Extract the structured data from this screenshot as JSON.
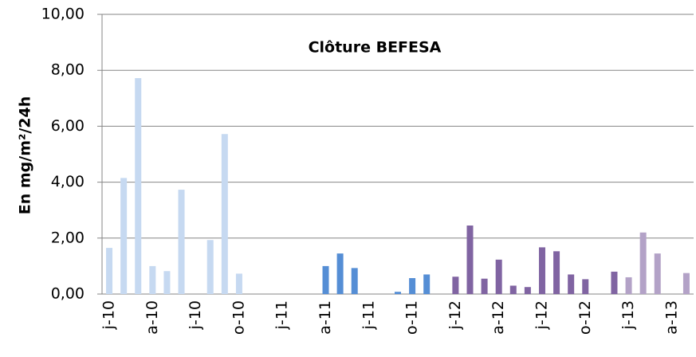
{
  "chart_data": {
    "type": "bar",
    "title": "Clôture BEFESA",
    "y_label": "En mg/m²/24h",
    "categories": [
      "j-10",
      null,
      null,
      "a-10",
      null,
      null,
      "j-10",
      null,
      null,
      "o-10",
      null,
      null,
      "j-11",
      null,
      null,
      "a-11",
      null,
      null,
      "j-11",
      null,
      null,
      "o-11",
      null,
      null,
      "j-12",
      null,
      null,
      "a-12",
      null,
      null,
      "j-12",
      null,
      null,
      "o-12",
      null,
      null,
      "j-13",
      null,
      null,
      "a-13",
      null
    ],
    "series": [
      {
        "color": "#c6d9f1",
        "values": [
          1.65,
          4.15,
          7.72,
          1.0,
          0.82,
          3.73,
          null,
          1.93,
          5.72,
          0.73,
          null,
          null,
          null,
          null,
          null,
          null,
          null,
          null,
          null,
          null,
          null,
          null,
          null,
          null,
          null,
          null,
          null,
          null,
          null,
          null,
          null,
          null,
          null,
          null,
          null,
          null,
          null,
          null,
          null,
          null,
          null
        ]
      },
      {
        "color": "#558ed5",
        "values": [
          null,
          null,
          null,
          null,
          null,
          null,
          null,
          null,
          null,
          null,
          null,
          null,
          null,
          null,
          null,
          1.0,
          1.45,
          0.93,
          null,
          null,
          0.08,
          0.57,
          0.7,
          null,
          null,
          null,
          null,
          null,
          null,
          null,
          null,
          null,
          null,
          null,
          null,
          null,
          null,
          null,
          null,
          null,
          null
        ]
      },
      {
        "color": "#8064a2",
        "values": [
          null,
          null,
          null,
          null,
          null,
          null,
          null,
          null,
          null,
          null,
          null,
          null,
          null,
          null,
          null,
          null,
          null,
          null,
          null,
          null,
          null,
          null,
          null,
          null,
          0.62,
          2.45,
          0.55,
          1.23,
          0.3,
          0.25,
          1.67,
          1.53,
          0.7,
          0.53,
          null,
          0.8,
          null,
          null,
          null,
          null,
          null
        ]
      },
      {
        "color": "#b3a2c7",
        "values": [
          null,
          null,
          null,
          null,
          null,
          null,
          null,
          null,
          null,
          null,
          null,
          null,
          null,
          null,
          null,
          null,
          null,
          null,
          null,
          null,
          null,
          null,
          null,
          null,
          null,
          null,
          null,
          null,
          null,
          null,
          null,
          null,
          null,
          null,
          null,
          null,
          0.6,
          2.2,
          1.45,
          null,
          0.75
        ]
      }
    ],
    "ylim": [
      0,
      10
    ],
    "yticks": [
      {
        "value": 0,
        "label": "0,00"
      },
      {
        "value": 2,
        "label": "2,00"
      },
      {
        "value": 4,
        "label": "4,00"
      },
      {
        "value": 6,
        "label": "6,00"
      },
      {
        "value": 8,
        "label": "8,00"
      },
      {
        "value": 10,
        "label": "10,00"
      }
    ],
    "grid": true
  }
}
